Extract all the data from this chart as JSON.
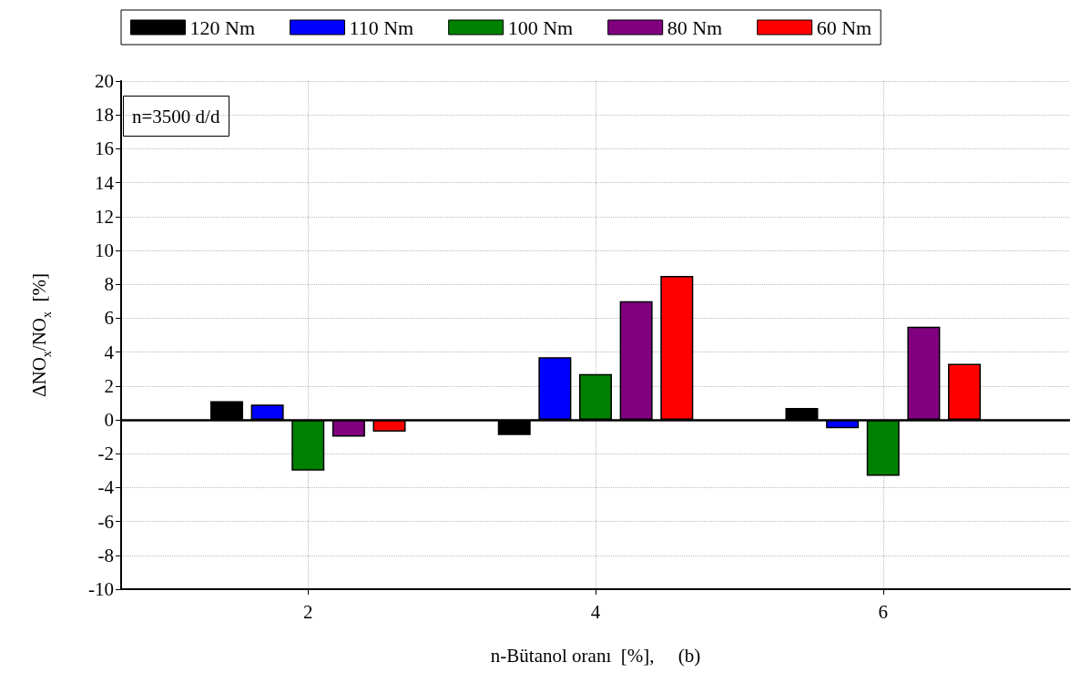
{
  "chart_data": {
    "type": "bar",
    "x": [
      2,
      4,
      6
    ],
    "series": [
      {
        "name": "120 Nm",
        "color": "#000000",
        "values": [
          1.1,
          -0.9,
          0.7
        ]
      },
      {
        "name": "110 Nm",
        "color": "#0000ff",
        "values": [
          0.9,
          3.7,
          -0.5
        ]
      },
      {
        "name": "100 Nm",
        "color": "#008000",
        "values": [
          -3.0,
          2.7,
          -3.3
        ]
      },
      {
        "name": "80 Nm",
        "color": "#800080",
        "values": [
          -1.0,
          7.0,
          5.5
        ]
      },
      {
        "name": "60 Nm",
        "color": "#ff0000",
        "values": [
          -0.7,
          8.5,
          3.3
        ]
      }
    ],
    "xlabel": "n-Bütanol oranı  [%],     (b)",
    "ylabel": "ΔNO$_{x}$/NO$_{x}$  [%]",
    "annotations": [
      "n=3500 d/d"
    ],
    "xlim": [
      0.7,
      7.3
    ],
    "xticks": [
      2,
      4,
      6
    ],
    "ylim": [
      -10,
      20
    ],
    "yticks": [
      -10,
      -8,
      -6,
      -4,
      -2,
      0,
      2,
      4,
      6,
      8,
      10,
      12,
      14,
      16,
      18,
      20
    ],
    "ref_lines": [
      {
        "axis": "y",
        "value": 0,
        "color": "#000000",
        "line_style": "solid"
      }
    ],
    "grid": true,
    "legend": "top"
  }
}
